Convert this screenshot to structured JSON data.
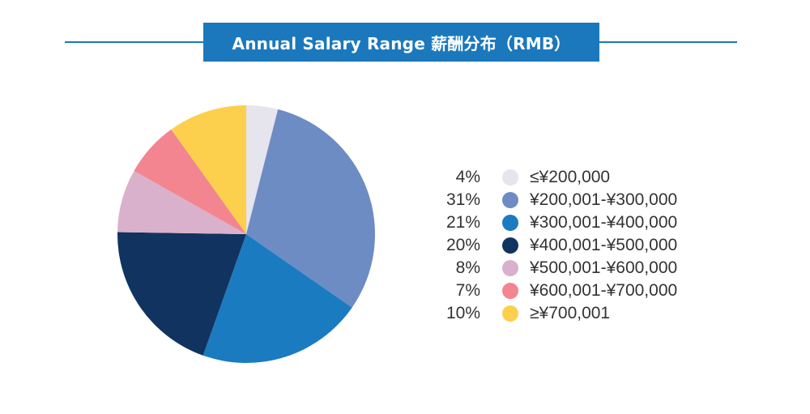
{
  "title": "Annual Salary Range 薪酬分布（RMB）",
  "colors": {
    "accent": "#1b78bd"
  },
  "chart_data": {
    "type": "pie",
    "title": "Annual Salary Range 薪酬分布（RMB）",
    "categories": [
      "≤¥200,000",
      "¥200,001-¥300,000",
      "¥300,001-¥400,000",
      "¥400,001-¥500,000",
      "¥500,001-¥600,000",
      "¥600,001-¥700,000",
      "≥¥700,001"
    ],
    "values": [
      4,
      31,
      21,
      20,
      8,
      7,
      10
    ],
    "value_labels": [
      "4%",
      "31%",
      "21%",
      "20%",
      "8%",
      "7%",
      "10%"
    ],
    "colors": [
      "#e6e4ec",
      "#6d8cc4",
      "#1b7bc1",
      "#11335f",
      "#d9b1cc",
      "#f2858f",
      "#fcd04d"
    ],
    "legend_position": "right",
    "start": "top",
    "direction": "clockwise"
  }
}
